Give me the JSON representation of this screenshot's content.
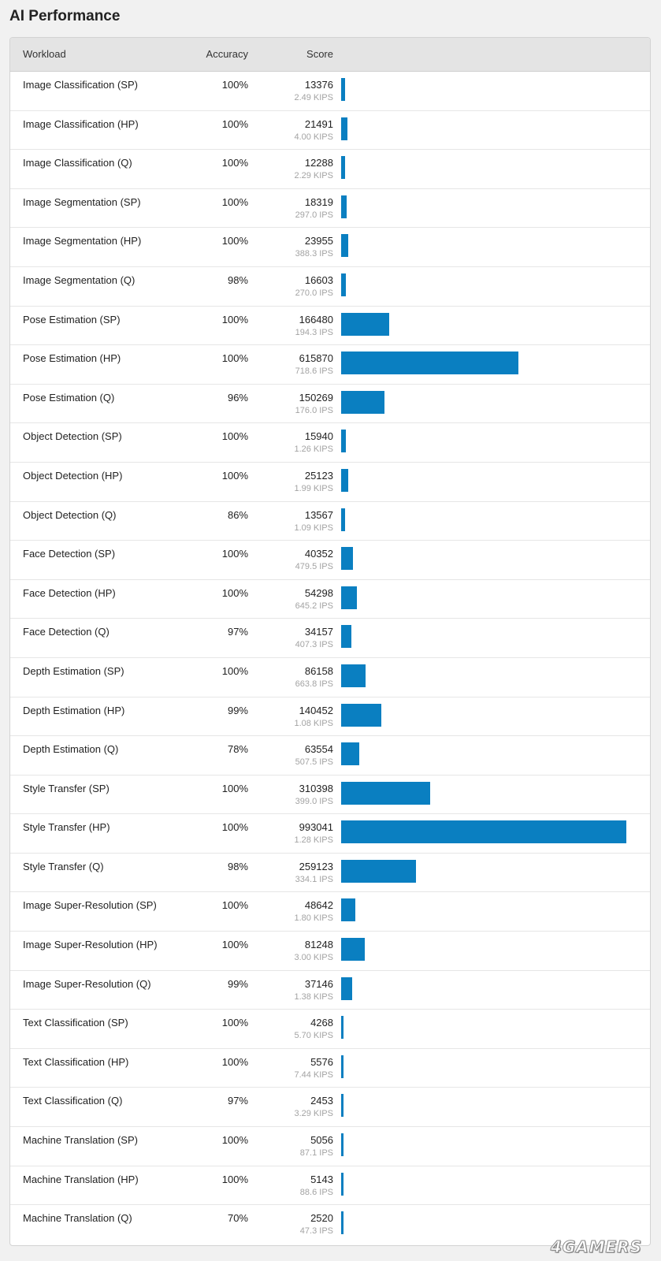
{
  "page": {
    "title": "AI Performance"
  },
  "table": {
    "headers": {
      "workload": "Workload",
      "accuracy": "Accuracy",
      "score": "Score"
    },
    "max_score": 993041,
    "bar_color": "#0a7fc1",
    "rows": [
      {
        "workload": "Image Classification (SP)",
        "accuracy": "100%",
        "score": "13376",
        "score_value": 13376,
        "rate": "2.49 KIPS"
      },
      {
        "workload": "Image Classification (HP)",
        "accuracy": "100%",
        "score": "21491",
        "score_value": 21491,
        "rate": "4.00 KIPS"
      },
      {
        "workload": "Image Classification (Q)",
        "accuracy": "100%",
        "score": "12288",
        "score_value": 12288,
        "rate": "2.29 KIPS"
      },
      {
        "workload": "Image Segmentation (SP)",
        "accuracy": "100%",
        "score": "18319",
        "score_value": 18319,
        "rate": "297.0 IPS"
      },
      {
        "workload": "Image Segmentation (HP)",
        "accuracy": "100%",
        "score": "23955",
        "score_value": 23955,
        "rate": "388.3 IPS"
      },
      {
        "workload": "Image Segmentation (Q)",
        "accuracy": "98%",
        "score": "16603",
        "score_value": 16603,
        "rate": "270.0 IPS"
      },
      {
        "workload": "Pose Estimation (SP)",
        "accuracy": "100%",
        "score": "166480",
        "score_value": 166480,
        "rate": "194.3 IPS"
      },
      {
        "workload": "Pose Estimation (HP)",
        "accuracy": "100%",
        "score": "615870",
        "score_value": 615870,
        "rate": "718.6 IPS"
      },
      {
        "workload": "Pose Estimation (Q)",
        "accuracy": "96%",
        "score": "150269",
        "score_value": 150269,
        "rate": "176.0 IPS"
      },
      {
        "workload": "Object Detection (SP)",
        "accuracy": "100%",
        "score": "15940",
        "score_value": 15940,
        "rate": "1.26 KIPS"
      },
      {
        "workload": "Object Detection (HP)",
        "accuracy": "100%",
        "score": "25123",
        "score_value": 25123,
        "rate": "1.99 KIPS"
      },
      {
        "workload": "Object Detection (Q)",
        "accuracy": "86%",
        "score": "13567",
        "score_value": 13567,
        "rate": "1.09 KIPS"
      },
      {
        "workload": "Face Detection (SP)",
        "accuracy": "100%",
        "score": "40352",
        "score_value": 40352,
        "rate": "479.5 IPS"
      },
      {
        "workload": "Face Detection (HP)",
        "accuracy": "100%",
        "score": "54298",
        "score_value": 54298,
        "rate": "645.2 IPS"
      },
      {
        "workload": "Face Detection (Q)",
        "accuracy": "97%",
        "score": "34157",
        "score_value": 34157,
        "rate": "407.3 IPS"
      },
      {
        "workload": "Depth Estimation (SP)",
        "accuracy": "100%",
        "score": "86158",
        "score_value": 86158,
        "rate": "663.8 IPS"
      },
      {
        "workload": "Depth Estimation (HP)",
        "accuracy": "99%",
        "score": "140452",
        "score_value": 140452,
        "rate": "1.08 KIPS"
      },
      {
        "workload": "Depth Estimation (Q)",
        "accuracy": "78%",
        "score": "63554",
        "score_value": 63554,
        "rate": "507.5 IPS"
      },
      {
        "workload": "Style Transfer (SP)",
        "accuracy": "100%",
        "score": "310398",
        "score_value": 310398,
        "rate": "399.0 IPS"
      },
      {
        "workload": "Style Transfer (HP)",
        "accuracy": "100%",
        "score": "993041",
        "score_value": 993041,
        "rate": "1.28 KIPS"
      },
      {
        "workload": "Style Transfer (Q)",
        "accuracy": "98%",
        "score": "259123",
        "score_value": 259123,
        "rate": "334.1 IPS"
      },
      {
        "workload": "Image Super-Resolution (SP)",
        "accuracy": "100%",
        "score": "48642",
        "score_value": 48642,
        "rate": "1.80 KIPS"
      },
      {
        "workload": "Image Super-Resolution (HP)",
        "accuracy": "100%",
        "score": "81248",
        "score_value": 81248,
        "rate": "3.00 KIPS"
      },
      {
        "workload": "Image Super-Resolution (Q)",
        "accuracy": "99%",
        "score": "37146",
        "score_value": 37146,
        "rate": "1.38 KIPS"
      },
      {
        "workload": "Text Classification (SP)",
        "accuracy": "100%",
        "score": "4268",
        "score_value": 4268,
        "rate": "5.70 KIPS"
      },
      {
        "workload": "Text Classification (HP)",
        "accuracy": "100%",
        "score": "5576",
        "score_value": 5576,
        "rate": "7.44 KIPS"
      },
      {
        "workload": "Text Classification (Q)",
        "accuracy": "97%",
        "score": "2453",
        "score_value": 2453,
        "rate": "3.29 KIPS"
      },
      {
        "workload": "Machine Translation (SP)",
        "accuracy": "100%",
        "score": "5056",
        "score_value": 5056,
        "rate": "87.1 IPS"
      },
      {
        "workload": "Machine Translation (HP)",
        "accuracy": "100%",
        "score": "5143",
        "score_value": 5143,
        "rate": "88.6 IPS"
      },
      {
        "workload": "Machine Translation (Q)",
        "accuracy": "70%",
        "score": "2520",
        "score_value": 2520,
        "rate": "47.3 IPS"
      }
    ]
  },
  "watermark": {
    "text": "4GAMERS"
  }
}
